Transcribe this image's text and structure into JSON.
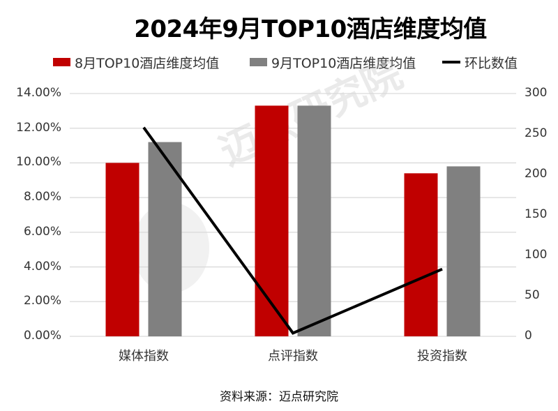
{
  "title": "2024年9月TOP10酒店维度均值",
  "legend": [
    {
      "label": "8月TOP10酒店维度均值",
      "type": "bar",
      "color": "#c00000"
    },
    {
      "label": "9月TOP10酒店维度均值",
      "type": "bar",
      "color": "#808080"
    },
    {
      "label": "环比数值",
      "type": "line",
      "color": "#000000"
    }
  ],
  "y_left_ticks": [
    "14.00%",
    "12.00%",
    "10.00%",
    "8.00%",
    "6.00%",
    "4.00%",
    "2.00%",
    "0.00%"
  ],
  "y_right_ticks": [
    "300",
    "250",
    "200",
    "150",
    "100",
    "50",
    "0"
  ],
  "categories": [
    "媒体指数",
    "点评指数",
    "投资指数"
  ],
  "source": "资料来源：迈点研究院",
  "watermark": "迈点研究院",
  "chart_data": {
    "type": "bar",
    "title": "2024年9月TOP10酒店维度均值",
    "categories": [
      "媒体指数",
      "点评指数",
      "投资指数"
    ],
    "series": [
      {
        "name": "8月TOP10酒店维度均值",
        "type": "bar",
        "axis": "left",
        "color": "#c00000",
        "values": [
          10.0,
          13.3,
          9.4
        ],
        "unit": "%"
      },
      {
        "name": "9月TOP10酒店维度均值",
        "type": "bar",
        "axis": "left",
        "color": "#808080",
        "values": [
          11.2,
          13.3,
          9.8
        ],
        "unit": "%"
      },
      {
        "name": "环比数值",
        "type": "line",
        "axis": "right",
        "color": "#000000",
        "values": [
          258,
          4,
          83
        ]
      }
    ],
    "xlabel": "",
    "ylabel": "",
    "ylim": [
      0,
      14
    ],
    "ylim_right": [
      0,
      300
    ],
    "y_left_tick_step": 2,
    "y_right_tick_step": 50,
    "grid": true,
    "legend_position": "top"
  }
}
